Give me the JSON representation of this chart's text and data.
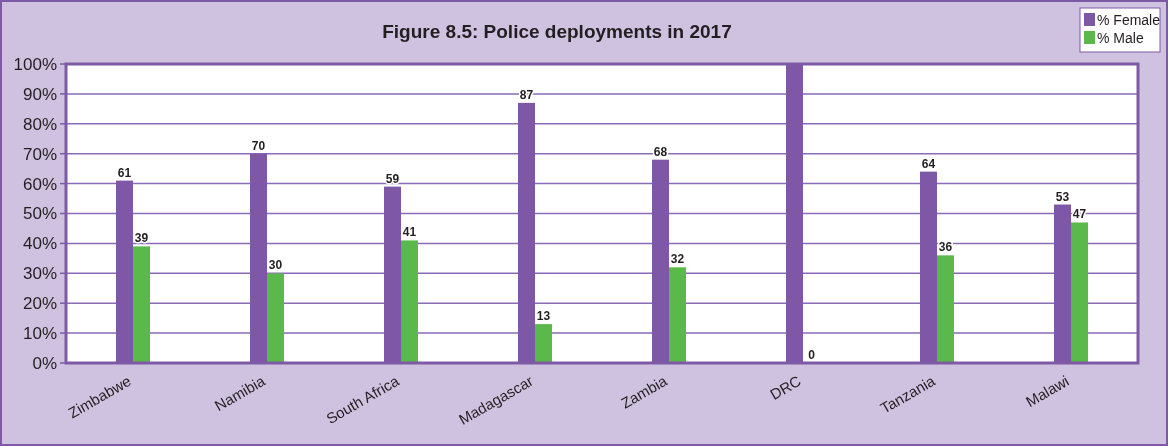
{
  "chart_data": {
    "type": "bar",
    "title": "Figure 8.5: Police deployments in 2017",
    "categories": [
      "Zimbabwe",
      "Namibia",
      "South Africa",
      "Madagascar",
      "Zambia",
      "DRC",
      "Tanzania",
      "Malawi"
    ],
    "series": [
      {
        "name": "% Female",
        "color": "#7e57a6",
        "values": [
          61,
          70,
          59,
          87,
          68,
          100,
          64,
          53
        ],
        "value_labels": [
          "61",
          "70",
          "59",
          "87",
          "68",
          null,
          "64",
          "53"
        ]
      },
      {
        "name": "% Male",
        "color": "#5bb84a",
        "values": [
          39,
          30,
          41,
          13,
          32,
          0,
          36,
          47
        ],
        "value_labels": [
          "39",
          "30",
          "41",
          "13",
          "32",
          "0",
          "36",
          "47"
        ]
      }
    ],
    "ylim": [
      0,
      100
    ],
    "yticks": [
      {
        "value": 0,
        "label": "0%"
      },
      {
        "value": 10,
        "label": "10%"
      },
      {
        "value": 20,
        "label": "20%"
      },
      {
        "value": 30,
        "label": "30%"
      },
      {
        "value": 40,
        "label": "40%"
      },
      {
        "value": 50,
        "label": "50%"
      },
      {
        "value": 60,
        "label": "60%"
      },
      {
        "value": 70,
        "label": "70%"
      },
      {
        "value": 80,
        "label": "80%"
      },
      {
        "value": 90,
        "label": "90%"
      },
      {
        "value": 100,
        "label": "100%"
      }
    ],
    "grid": "y",
    "legend": "top right"
  }
}
